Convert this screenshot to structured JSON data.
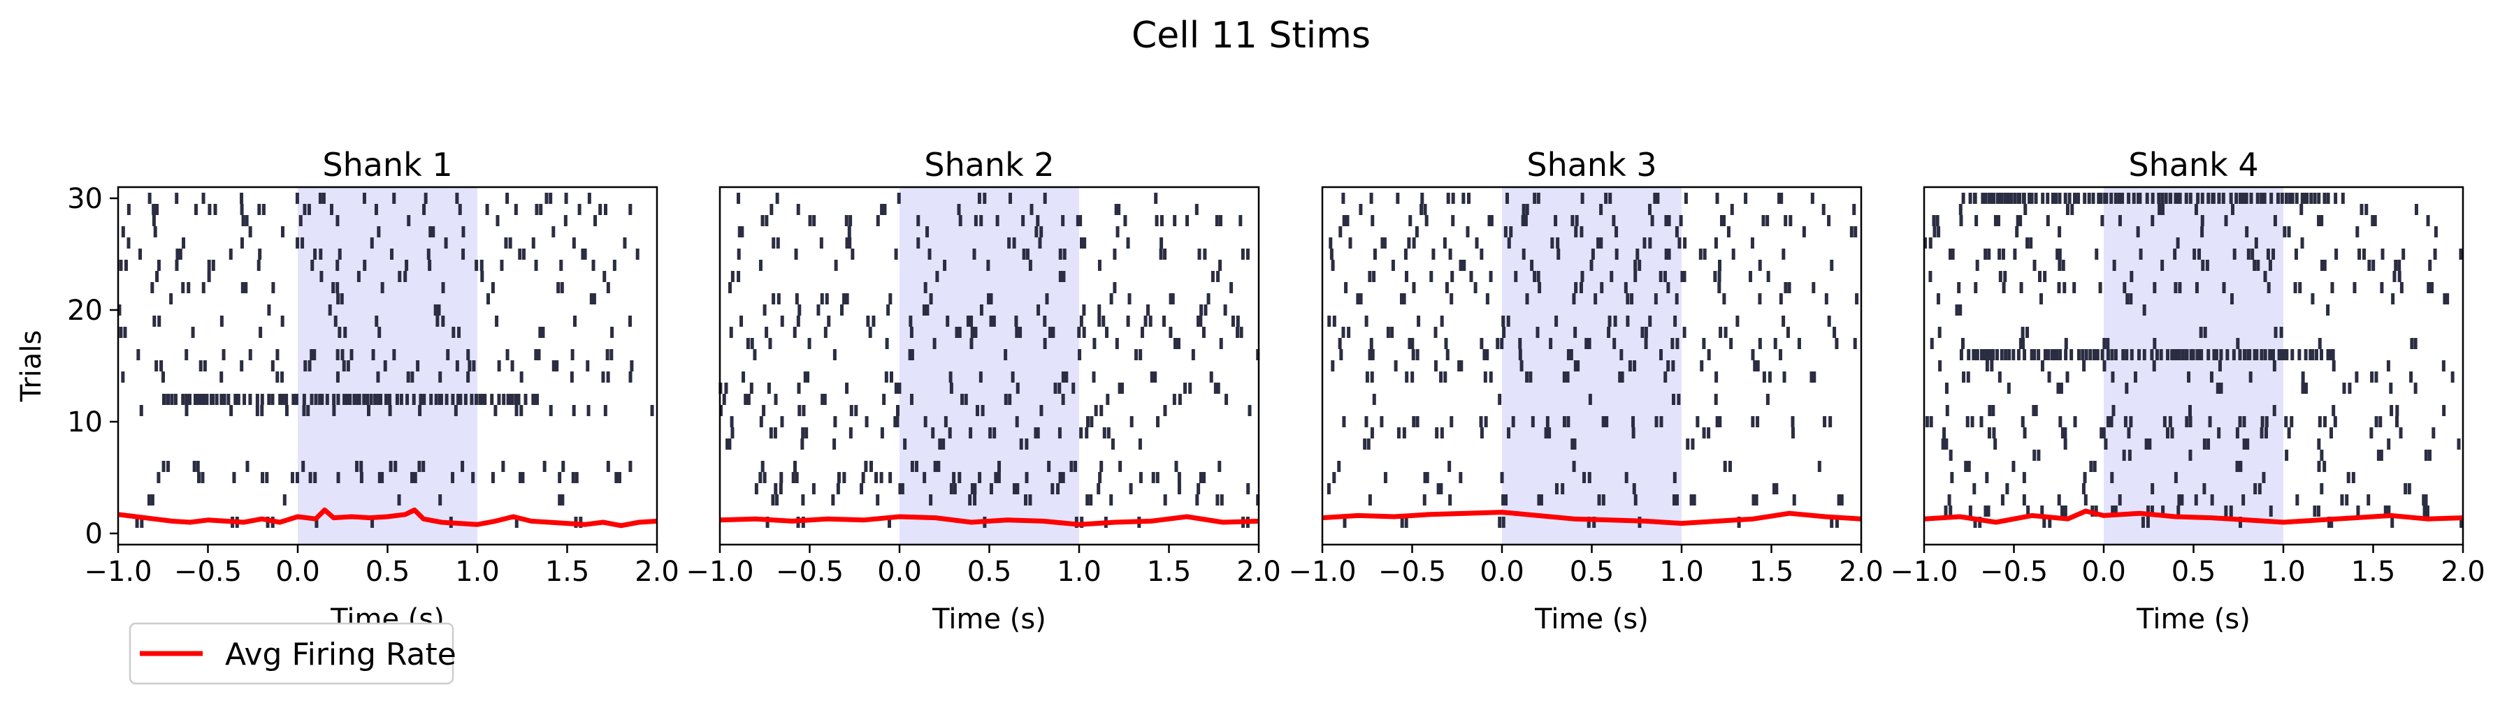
{
  "figure": {
    "title": "Cell 11 Stims"
  },
  "legend": {
    "label": "Avg Firing Rate",
    "line_color": "#ff0000",
    "placement": "below-left"
  },
  "colors": {
    "spike": "#2b2d42",
    "stim_window": "#e3e3fb",
    "firing_rate": "#ff0000",
    "axes": "#000000"
  },
  "chart_data": [
    {
      "type": "raster",
      "title": "Shank 1",
      "xlabel": "Time (s)",
      "ylabel": "Trials",
      "xlim": [
        -1.0,
        2.0
      ],
      "ylim": [
        -1,
        31
      ],
      "xticks": [
        "−1.0",
        "−0.5",
        "0.0",
        "0.5",
        "1.0",
        "1.5",
        "2.0"
      ],
      "yticks": [
        "0",
        "10",
        "20",
        "30"
      ],
      "stim_window": [
        0.0,
        1.0
      ],
      "trials": 30,
      "seed": 11,
      "dense_trials": [
        12
      ],
      "avg_firing_rate": {
        "x": [
          -1.0,
          -0.9,
          -0.8,
          -0.7,
          -0.6,
          -0.5,
          -0.4,
          -0.3,
          -0.2,
          -0.1,
          0.0,
          0.1,
          0.15,
          0.2,
          0.3,
          0.4,
          0.5,
          0.6,
          0.65,
          0.7,
          0.8,
          0.9,
          1.0,
          1.1,
          1.2,
          1.3,
          1.4,
          1.5,
          1.6,
          1.7,
          1.8,
          1.9,
          2.0
        ],
        "y": [
          1.7,
          1.5,
          1.3,
          1.1,
          1.0,
          1.2,
          1.1,
          1.0,
          1.3,
          1.0,
          1.5,
          1.3,
          2.1,
          1.4,
          1.5,
          1.4,
          1.5,
          1.7,
          2.1,
          1.3,
          1.0,
          0.9,
          0.8,
          1.1,
          1.5,
          1.1,
          1.0,
          0.9,
          0.8,
          1.0,
          0.7,
          1.0,
          1.1
        ]
      }
    },
    {
      "type": "raster",
      "title": "Shank 2",
      "xlabel": "Time (s)",
      "ylabel": "",
      "xlim": [
        -1.0,
        2.0
      ],
      "ylim": [
        -1,
        31
      ],
      "xticks": [
        "−1.0",
        "−0.5",
        "0.0",
        "0.5",
        "1.0",
        "1.5",
        "2.0"
      ],
      "yticks": [],
      "stim_window": [
        0.0,
        1.0
      ],
      "trials": 30,
      "seed": 22,
      "dense_trials": [],
      "avg_firing_rate": {
        "x": [
          -1.0,
          -0.8,
          -0.6,
          -0.4,
          -0.2,
          0.0,
          0.2,
          0.4,
          0.6,
          0.8,
          1.0,
          1.2,
          1.4,
          1.6,
          1.8,
          2.0
        ],
        "y": [
          1.2,
          1.3,
          1.1,
          1.3,
          1.2,
          1.5,
          1.4,
          1.0,
          1.2,
          1.1,
          0.8,
          1.0,
          1.1,
          1.5,
          1.0,
          1.1
        ]
      }
    },
    {
      "type": "raster",
      "title": "Shank 3",
      "xlabel": "Time (s)",
      "ylabel": "",
      "xlim": [
        -1.0,
        2.0
      ],
      "ylim": [
        -1,
        31
      ],
      "xticks": [
        "−1.0",
        "−0.5",
        "0.0",
        "0.5",
        "1.0",
        "1.5",
        "2.0"
      ],
      "yticks": [],
      "stim_window": [
        0.0,
        1.0
      ],
      "trials": 30,
      "seed": 33,
      "dense_trials": [
        2
      ],
      "avg_firing_rate": {
        "x": [
          -1.0,
          -0.8,
          -0.6,
          -0.4,
          -0.2,
          0.0,
          0.2,
          0.4,
          0.6,
          0.8,
          1.0,
          1.2,
          1.4,
          1.6,
          1.8,
          2.0
        ],
        "y": [
          1.4,
          1.6,
          1.5,
          1.7,
          1.8,
          1.9,
          1.6,
          1.3,
          1.2,
          1.1,
          0.9,
          1.1,
          1.3,
          1.8,
          1.5,
          1.3
        ]
      }
    },
    {
      "type": "raster",
      "title": "Shank 4",
      "xlabel": "Time (s)",
      "ylabel": "",
      "xlim": [
        -1.0,
        2.0
      ],
      "ylim": [
        -1,
        31
      ],
      "xticks": [
        "−1.0",
        "−0.5",
        "0.0",
        "0.5",
        "1.0",
        "1.5",
        "2.0"
      ],
      "yticks": [],
      "stim_window": [
        0.0,
        1.0
      ],
      "trials": 30,
      "seed": 44,
      "dense_trials": [
        16,
        30
      ],
      "avg_firing_rate": {
        "x": [
          -1.0,
          -0.8,
          -0.6,
          -0.4,
          -0.2,
          -0.1,
          0.0,
          0.2,
          0.4,
          0.6,
          0.8,
          1.0,
          1.2,
          1.4,
          1.6,
          1.8,
          2.0
        ],
        "y": [
          1.3,
          1.5,
          1.0,
          1.6,
          1.3,
          2.0,
          1.6,
          1.8,
          1.5,
          1.4,
          1.2,
          1.0,
          1.2,
          1.4,
          1.6,
          1.3,
          1.4
        ]
      }
    }
  ]
}
